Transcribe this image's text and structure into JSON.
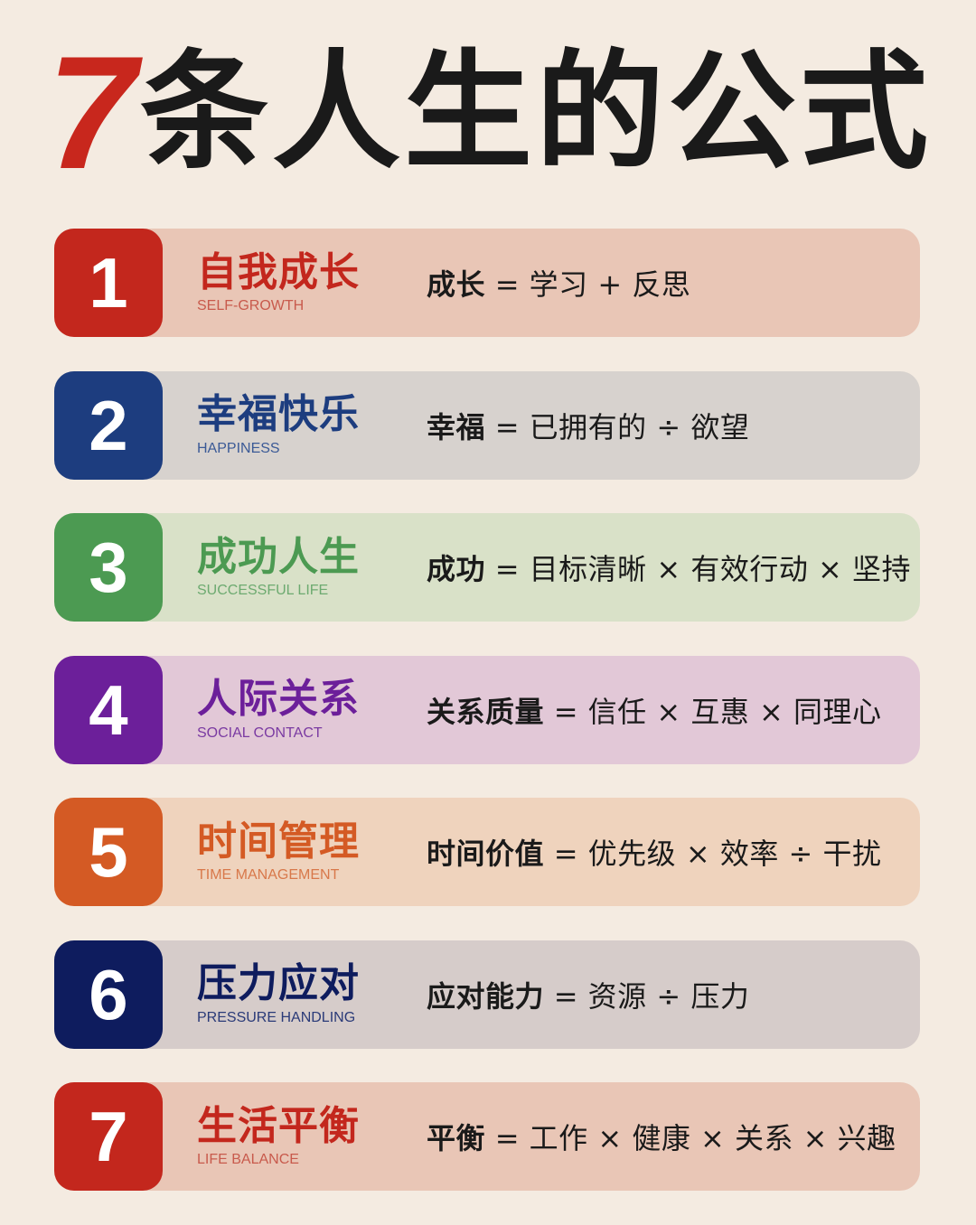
{
  "header": {
    "number": "7",
    "text": "条人生的公式"
  },
  "colors": {
    "background": "#f4ebe1",
    "title_number": "#c8271d",
    "title_text": "#1a1a1a"
  },
  "formulas": [
    {
      "number": "1",
      "title": "自我成长",
      "subtitle": "SELF-GROWTH",
      "key": "成长",
      "expression": " = 学习 + 反思",
      "accent": "#c3271d",
      "row_bg": "#e9c6b6",
      "subtitle_color": "#c85a4c"
    },
    {
      "number": "2",
      "title": "幸福快乐",
      "subtitle": "HAPPINESS",
      "key": "幸福",
      "expression": " = 已拥有的 ÷ 欲望",
      "accent": "#1d3d7f",
      "row_bg": "#d7d2ce",
      "subtitle_color": "#3b5a96"
    },
    {
      "number": "3",
      "title": "成功人生",
      "subtitle": "SUCCESSFUL LIFE",
      "key": "成功",
      "expression": " = 目标清晰 × 有效行动 × 坚持",
      "accent": "#4c9a52",
      "row_bg": "#d9e1c8",
      "subtitle_color": "#6daa70"
    },
    {
      "number": "4",
      "title": "人际关系",
      "subtitle": "SOCIAL CONTACT",
      "key": "关系质量",
      "expression": " = 信任 × 互惠 × 同理心",
      "accent": "#6c1f9a",
      "row_bg": "#e2c8d7",
      "subtitle_color": "#7a3aa2"
    },
    {
      "number": "5",
      "title": "时间管理",
      "subtitle": "TIME MANAGEMENT",
      "key": "时间价值",
      "expression": " = 优先级 × 效率 ÷ 干扰",
      "accent": "#d45a24",
      "row_bg": "#efd3bd",
      "subtitle_color": "#d8784a"
    },
    {
      "number": "6",
      "title": "压力应对",
      "subtitle": "PRESSURE HANDLING",
      "key": "应对能力",
      "expression": " = 资源 ÷ 压力",
      "accent": "#0e1c5e",
      "row_bg": "#d6ccca",
      "subtitle_color": "#2a3a78"
    },
    {
      "number": "7",
      "title": "生活平衡",
      "subtitle": "LIFE BALANCE",
      "key": "平衡",
      "expression": " = 工作 × 健康 × 关系 × 兴趣",
      "accent": "#c3271d",
      "row_bg": "#e9c6b6",
      "subtitle_color": "#c85a4c"
    }
  ]
}
